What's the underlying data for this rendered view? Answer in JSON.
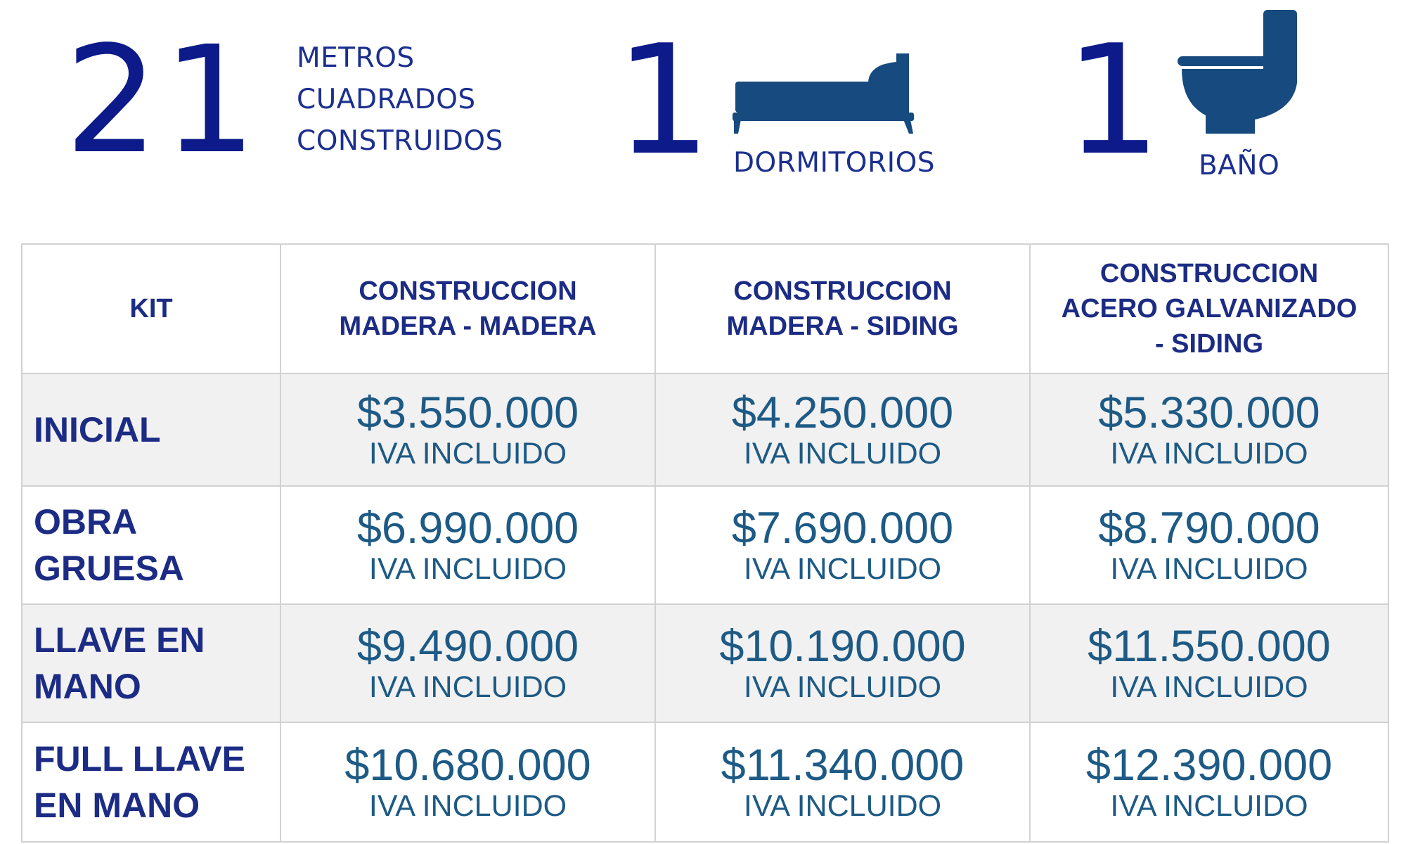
{
  "stats": {
    "area": {
      "number": "21",
      "label_lines": [
        "METROS",
        "CUADRADOS",
        "CONSTRUIDOS"
      ]
    },
    "bedrooms": {
      "number": "1",
      "label": "DORMITORIOS",
      "icon": "bed-icon"
    },
    "bathrooms": {
      "number": "1",
      "label": "BAÑO",
      "icon": "toilet-icon"
    }
  },
  "colors": {
    "stat_number": "#0d1a8a",
    "icon": "#174a7e",
    "header_text": "#1c2c85",
    "price_text": "#1d5a85",
    "shaded_row": "#f1f1f1",
    "grid": "#d2d2d2"
  },
  "table": {
    "headers": [
      "KIT",
      "CONSTRUCCION\nMADERA - MADERA",
      "CONSTRUCCION\nMADERA - SIDING",
      "CONSTRUCCION\nACERO GALVANIZADO\n- SIDING"
    ],
    "rows": [
      {
        "label": "INICIAL",
        "prices": [
          "$3.550.000",
          "$4.250.000",
          "$5.330.000"
        ],
        "note": "IVA INCLUIDO"
      },
      {
        "label": "OBRA\nGRUESA",
        "prices": [
          "$6.990.000",
          "$7.690.000",
          "$8.790.000"
        ],
        "note": "IVA INCLUIDO"
      },
      {
        "label": "LLAVE EN\nMANO",
        "prices": [
          "$9.490.000",
          "$10.190.000",
          "$11.550.000"
        ],
        "note": "IVA INCLUIDO"
      },
      {
        "label": "FULL LLAVE\nEN MANO",
        "prices": [
          "$10.680.000",
          "$11.340.000",
          "$12.390.000"
        ],
        "note": "IVA INCLUIDO"
      }
    ]
  }
}
